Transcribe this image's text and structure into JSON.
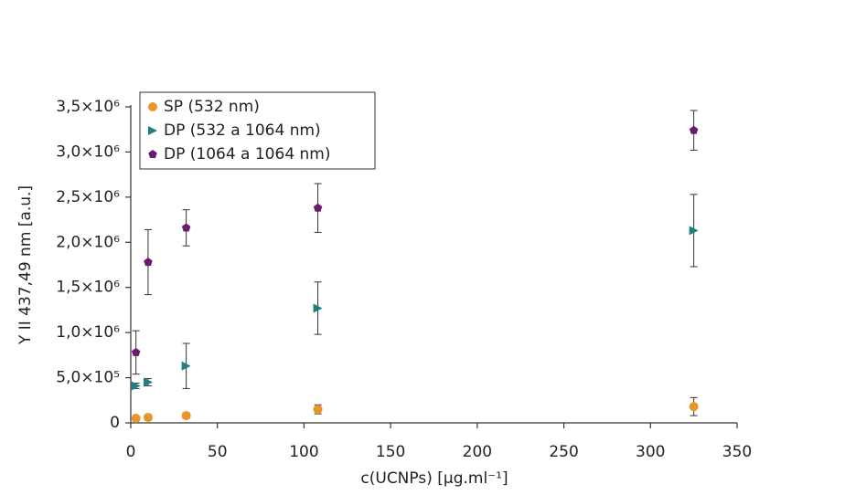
{
  "chart_data": {
    "type": "scatter",
    "x_label": "c(UCNPs) [µg.ml⁻¹]",
    "y_label": "Y II 437,49 nm [a.u.]",
    "x": [
      3,
      10,
      32,
      108,
      325
    ],
    "series": [
      {
        "name": "SP (532 nm)",
        "color": "#e8962a",
        "marker": "circle",
        "values": [
          50000,
          60000,
          80000,
          150000,
          180000
        ],
        "errors": [
          20000,
          30000,
          30000,
          50000,
          100000
        ]
      },
      {
        "name": "DP (532 a 1064 nm)",
        "color": "#1f7f80",
        "marker": "triangle-right",
        "values": [
          410000,
          450000,
          630000,
          1270000,
          2130000
        ],
        "errors": [
          30000,
          40000,
          250000,
          290000,
          400000
        ]
      },
      {
        "name": "DP (1064 a 1064 nm)",
        "color": "#6b1a6e",
        "marker": "pentagon",
        "values": [
          780000,
          1780000,
          2160000,
          2380000,
          3240000
        ],
        "errors": [
          240000,
          360000,
          200000,
          270000,
          220000
        ]
      }
    ],
    "xlim": [
      0,
      350
    ],
    "xticks": [
      0,
      50,
      100,
      150,
      200,
      250,
      300,
      350
    ],
    "ylim": [
      0,
      3500000
    ],
    "yticks": [
      0,
      {
        "value": 500000,
        "label": "5,0×10⁵"
      },
      {
        "value": 1000000,
        "label": "1,0×10⁶"
      },
      {
        "value": 1500000,
        "label": "1,5×10⁶"
      },
      {
        "value": 2000000,
        "label": "2,0×10⁶"
      },
      {
        "value": 2500000,
        "label": "2,5×10⁶"
      },
      {
        "value": 3000000,
        "label": "3,0×10⁶"
      },
      {
        "value": 3500000,
        "label": "3,5×10⁶"
      }
    ],
    "grid": false,
    "legend": "upper left"
  }
}
